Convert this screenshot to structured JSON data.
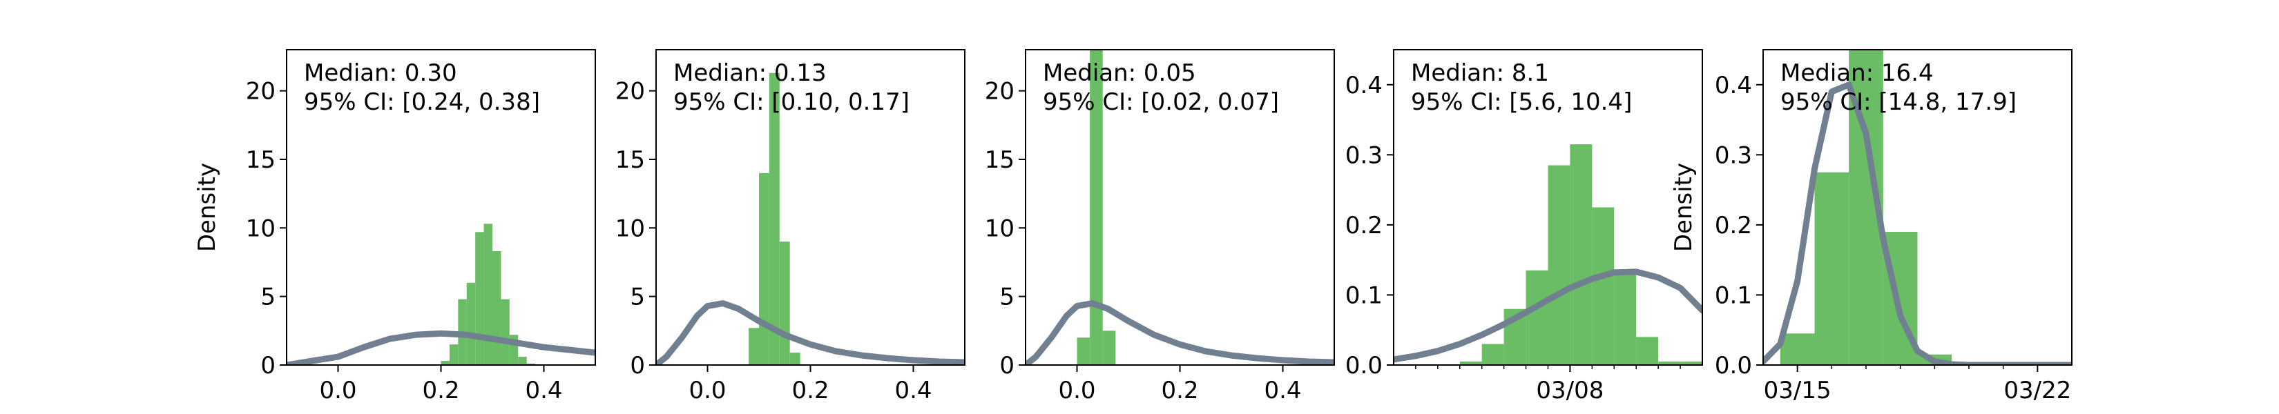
{
  "chart_data": [
    {
      "type": "bar",
      "overlay_type": "line",
      "ylabel": "Density",
      "xlim": [
        -0.1,
        0.5
      ],
      "ylim": [
        0,
        23
      ],
      "xticks": [
        0.0,
        0.2,
        0.4
      ],
      "xtick_labels": [
        "0.0",
        "0.2",
        "0.4"
      ],
      "yticks": [
        0,
        5,
        10,
        15,
        20
      ],
      "ytick_labels": [
        "0",
        "5",
        "10",
        "15",
        "20"
      ],
      "annotation": [
        "Median: 0.30",
        "95% CI: [0.24, 0.38]"
      ],
      "histogram": {
        "bin_edges": [
          0.2,
          0.2167,
          0.2333,
          0.25,
          0.2667,
          0.2833,
          0.3,
          0.3167,
          0.3333,
          0.35,
          0.3667,
          0.3833,
          0.4
        ],
        "heights": [
          0.3,
          1.5,
          4.8,
          6.0,
          9.7,
          10.3,
          8.3,
          4.8,
          2.2,
          0.6,
          0.1,
          0.0
        ]
      },
      "curve": {
        "x": [
          -0.1,
          -0.05,
          0.0,
          0.05,
          0.1,
          0.15,
          0.2,
          0.25,
          0.3,
          0.35,
          0.4,
          0.45,
          0.5
        ],
        "y": [
          0.0,
          0.3,
          0.6,
          1.3,
          1.9,
          2.2,
          2.3,
          2.2,
          1.9,
          1.6,
          1.3,
          1.1,
          0.9
        ]
      }
    },
    {
      "type": "bar",
      "overlay_type": "line",
      "ylabel": "",
      "xlim": [
        -0.1,
        0.5
      ],
      "ylim": [
        0,
        23
      ],
      "xticks": [
        0.0,
        0.2,
        0.4
      ],
      "xtick_labels": [
        "0.0",
        "0.2",
        "0.4"
      ],
      "yticks": [
        0,
        5,
        10,
        15,
        20
      ],
      "ytick_labels": [
        "0",
        "5",
        "10",
        "15",
        "20"
      ],
      "annotation": [
        "Median: 0.13",
        "95% CI: [0.10, 0.17]"
      ],
      "histogram": {
        "bin_edges": [
          0.08,
          0.1,
          0.12,
          0.14,
          0.16,
          0.18
        ],
        "heights": [
          2.7,
          14.0,
          21.3,
          9.0,
          0.9
        ]
      },
      "curve": {
        "x": [
          -0.1,
          -0.08,
          -0.05,
          -0.02,
          0.0,
          0.03,
          0.06,
          0.1,
          0.15,
          0.2,
          0.25,
          0.3,
          0.35,
          0.4,
          0.45,
          0.5
        ],
        "y": [
          0.0,
          0.6,
          2.0,
          3.6,
          4.3,
          4.5,
          4.1,
          3.2,
          2.2,
          1.5,
          1.0,
          0.7,
          0.5,
          0.35,
          0.25,
          0.2
        ]
      }
    },
    {
      "type": "bar",
      "overlay_type": "line",
      "ylabel": "",
      "xlim": [
        -0.1,
        0.5
      ],
      "ylim": [
        0,
        23
      ],
      "xticks": [
        0.0,
        0.2,
        0.4
      ],
      "xtick_labels": [
        "0.0",
        "0.2",
        "0.4"
      ],
      "yticks": [
        0,
        5,
        10,
        15,
        20
      ],
      "ytick_labels": [
        "0",
        "5",
        "10",
        "15",
        "20"
      ],
      "annotation": [
        "Median: 0.05",
        "95% CI: [0.02, 0.07]"
      ],
      "histogram": {
        "bin_edges": [
          0.0,
          0.025,
          0.05,
          0.075
        ],
        "heights": [
          2.0,
          23.0,
          2.5
        ]
      },
      "curve": {
        "x": [
          -0.1,
          -0.08,
          -0.05,
          -0.02,
          0.0,
          0.03,
          0.06,
          0.1,
          0.15,
          0.2,
          0.25,
          0.3,
          0.35,
          0.4,
          0.45,
          0.5
        ],
        "y": [
          0.0,
          0.6,
          2.0,
          3.6,
          4.3,
          4.5,
          4.1,
          3.2,
          2.2,
          1.5,
          1.0,
          0.7,
          0.5,
          0.35,
          0.25,
          0.2
        ]
      }
    },
    {
      "type": "bar",
      "overlay_type": "line",
      "ylabel": "",
      "xlim": [
        "02/28",
        "03/14"
      ],
      "ylim": [
        0,
        0.45
      ],
      "xticks": [
        "03/08"
      ],
      "xtick_labels": [
        "03/08"
      ],
      "minor_xticks": [
        "03/01",
        "03/02",
        "03/03",
        "03/04",
        "03/05",
        "03/06",
        "03/07",
        "03/09",
        "03/10",
        "03/11",
        "03/12",
        "03/13"
      ],
      "yticks": [
        0.0,
        0.1,
        0.2,
        0.3,
        0.4
      ],
      "ytick_labels": [
        "0.0",
        "0.1",
        "0.2",
        "0.3",
        "0.4"
      ],
      "annotation": [
        "Median: 8.1",
        "95% CI: [5.6, 10.4]"
      ],
      "histogram": {
        "bin_edges": [
          "03/03",
          "03/04",
          "03/05",
          "03/06",
          "03/07",
          "03/08",
          "03/09",
          "03/10",
          "03/11",
          "03/12",
          "03/13",
          "03/14"
        ],
        "heights": [
          0.005,
          0.03,
          0.08,
          0.135,
          0.285,
          0.315,
          0.225,
          0.135,
          0.04,
          0.005,
          0.005
        ]
      },
      "curve": {
        "x": [
          "02/28",
          "03/01",
          "03/02",
          "03/03",
          "03/04",
          "03/05",
          "03/06",
          "03/07",
          "03/08",
          "03/09",
          "03/10",
          "03/11",
          "03/12",
          "03/13",
          "03/14"
        ],
        "y": [
          0.008,
          0.013,
          0.02,
          0.03,
          0.043,
          0.058,
          0.075,
          0.093,
          0.11,
          0.123,
          0.132,
          0.133,
          0.125,
          0.11,
          0.078
        ]
      }
    },
    {
      "type": "bar",
      "overlay_type": "line",
      "ylabel": "Density",
      "xlim": [
        "03/14",
        "03/23"
      ],
      "ylim": [
        0,
        0.45
      ],
      "xticks": [
        "03/15",
        "03/22"
      ],
      "xtick_labels": [
        "03/15",
        "03/22"
      ],
      "minor_xticks": [
        "03/16",
        "03/17",
        "03/18",
        "03/19",
        "03/20",
        "03/21"
      ],
      "yticks": [
        0.0,
        0.1,
        0.2,
        0.3,
        0.4
      ],
      "ytick_labels": [
        "0.0",
        "0.1",
        "0.2",
        "0.3",
        "0.4"
      ],
      "annotation": [
        "Median: 16.4",
        "95% CI: [14.8, 17.9]"
      ],
      "histogram": {
        "bin_edges": [
          "03/14 12:00",
          "03/15 12:00",
          "03/16 12:00",
          "03/17 12:00",
          "03/18 12:00",
          "03/19 12:00"
        ],
        "heights": [
          0.045,
          0.275,
          0.45,
          0.19,
          0.015
        ]
      },
      "curve": {
        "x": [
          "03/14",
          "03/14 12:00",
          "03/15",
          "03/15 12:00",
          "03/16",
          "03/16 12:00",
          "03/17",
          "03/17 12:00",
          "03/18",
          "03/18 12:00",
          "03/19",
          "03/19 12:00",
          "03/20",
          "03/21",
          "03/22",
          "03/23"
        ],
        "y": [
          0.005,
          0.03,
          0.12,
          0.28,
          0.39,
          0.4,
          0.33,
          0.18,
          0.07,
          0.02,
          0.005,
          0.001,
          0.0,
          0.0,
          0.0,
          0.0
        ]
      }
    }
  ],
  "colors": {
    "bar": "#6abd65",
    "curve": "#708090",
    "axis": "#000000"
  }
}
